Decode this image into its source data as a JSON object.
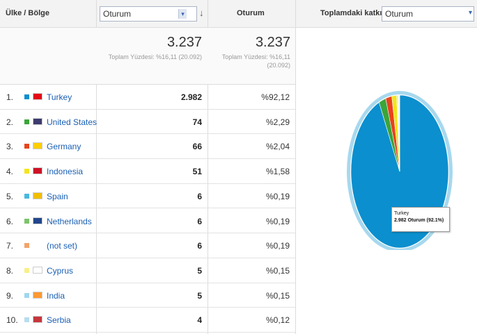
{
  "header": {
    "col1": "Ülke / Bölge",
    "metric_select": "Oturum",
    "col3": "Oturum",
    "col4": "Toplamdaki katkısı:",
    "contrib_select": "Oturum"
  },
  "totals": {
    "a_value": "3.237",
    "a_sub": "Toplam Yüzdesi: %16,11 (20.092)",
    "b_value": "3.237",
    "b_sub1": "Toplam Yüzdesi: %16,11",
    "b_sub2": "(20.092)"
  },
  "rows": [
    {
      "idx": "1.",
      "country": "Turkey",
      "value": "2.982",
      "pct": "%92,12",
      "color": "#0b8fce",
      "flag": "#e30a17"
    },
    {
      "idx": "2.",
      "country": "United States",
      "value": "74",
      "pct": "%2,29",
      "color": "#3aa53a",
      "flag": "#3c3b6e"
    },
    {
      "idx": "3.",
      "country": "Germany",
      "value": "66",
      "pct": "%2,04",
      "color": "#e8431c",
      "flag": "#ffce00"
    },
    {
      "idx": "4.",
      "country": "Indonesia",
      "value": "51",
      "pct": "%1,58",
      "color": "#f3e51c",
      "flag": "#ce1126"
    },
    {
      "idx": "5.",
      "country": "Spain",
      "value": "6",
      "pct": "%0,19",
      "color": "#49b8e0",
      "flag": "#f1bf00"
    },
    {
      "idx": "6.",
      "country": "Netherlands",
      "value": "6",
      "pct": "%0,19",
      "color": "#7dc36b",
      "flag": "#21468b"
    },
    {
      "idx": "7.",
      "country": "(not set)",
      "value": "6",
      "pct": "%0,19",
      "color": "#f3a36a",
      "flag": ""
    },
    {
      "idx": "8.",
      "country": "Cyprus",
      "value": "5",
      "pct": "%0,15",
      "color": "#f8ef8b",
      "flag": "#ffffff"
    },
    {
      "idx": "9.",
      "country": "India",
      "value": "5",
      "pct": "%0,15",
      "color": "#9fd7ee",
      "flag": "#ff9933"
    },
    {
      "idx": "10.",
      "country": "Serbia",
      "value": "4",
      "pct": "%0,12",
      "color": "#b9dcef",
      "flag": "#c6363c"
    }
  ],
  "pie": {
    "tooltip_line1": "Turkey",
    "tooltip_line2": "2.982 Oturum (92.1%)"
  },
  "chart_data": {
    "type": "pie",
    "categories": [
      "Turkey",
      "United States",
      "Germany",
      "Indonesia",
      "Spain",
      "Netherlands",
      "(not set)",
      "Cyprus",
      "India",
      "Serbia"
    ],
    "values": [
      92.12,
      2.29,
      2.04,
      1.58,
      0.19,
      0.19,
      0.19,
      0.15,
      0.15,
      0.12
    ],
    "colors": [
      "#0b8fce",
      "#3aa53a",
      "#e8431c",
      "#f3e51c",
      "#49b8e0",
      "#7dc36b",
      "#f3a36a",
      "#f8ef8b",
      "#9fd7ee",
      "#b9dcef"
    ]
  }
}
